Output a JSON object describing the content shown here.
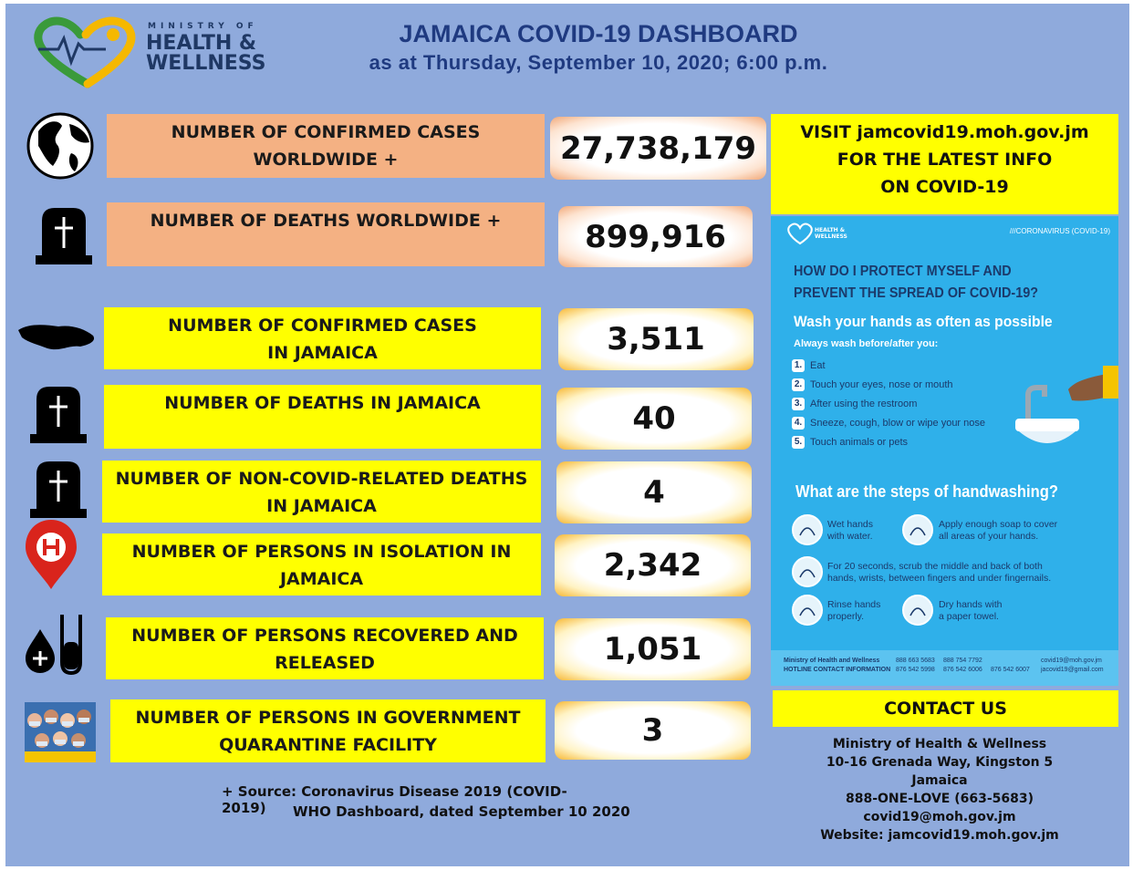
{
  "logo": {
    "top": "MINISTRY OF",
    "line1": "HEALTH &",
    "line2": "WELLNESS"
  },
  "header": {
    "title": "JAMAICA COVID-19 DASHBOARD",
    "subtitle": "as at Thursday, September 10, 2020; 6:00 p.m."
  },
  "stats": [
    {
      "label": [
        "NUMBER OF CONFIRMED CASES",
        "WORLDWIDE +"
      ],
      "value": "27,738,179"
    },
    {
      "label": [
        "NUMBER OF DEATHS WORLDWIDE +"
      ],
      "value": "899,916"
    },
    {
      "label": [
        "NUMBER OF CONFIRMED CASES",
        "IN JAMAICA"
      ],
      "value": "3,511"
    },
    {
      "label": [
        "NUMBER OF DEATHS IN JAMAICA"
      ],
      "value": "40"
    },
    {
      "label": [
        "NUMBER OF NON-COVID-RELATED  DEATHS",
        "IN JAMAICA"
      ],
      "value": "4"
    },
    {
      "label": [
        "NUMBER OF PERSONS IN ISOLATION IN",
        "JAMAICA"
      ],
      "value": "2,342"
    },
    {
      "label": [
        "NUMBER OF PERSONS RECOVERED AND",
        "RELEASED"
      ],
      "value": "1,051"
    },
    {
      "label": [
        "NUMBER OF PERSONS IN GOVERNMENT",
        "QUARANTINE FACILITY"
      ],
      "value": "3"
    }
  ],
  "footnote": [
    "+ Source: Coronavirus Disease 2019 (COVID-2019)",
    "WHO Dashboard, dated September 10 2020"
  ],
  "visit": [
    "VISIT  jamcovid19.moh.gov.jm",
    "FOR THE LATEST INFO",
    "ON COVID-19"
  ],
  "poster": {
    "logo": [
      "HEALTH &",
      "WELLNESS"
    ],
    "tag": "///CORONAVIRUS (COVID-19)",
    "question": [
      "HOW DO I PROTECT MYSELF AND",
      "PREVENT THE SPREAD OF COVID-19?"
    ],
    "wash": "Wash your hands as often as possible",
    "always": "Always wash before/after you:",
    "list": [
      {
        "num": "1.",
        "text": "Eat"
      },
      {
        "num": "2.",
        "text": "Touch your eyes, nose or mouth"
      },
      {
        "num": "3.",
        "text": "After using the restroom"
      },
      {
        "num": "4.",
        "text": "Sneeze, cough, blow or wipe your nose"
      },
      {
        "num": "5.",
        "text": "Touch animals or pets"
      }
    ],
    "steps_title": "What are the steps of handwashing?",
    "steps": [
      [
        "Wet hands",
        "with water."
      ],
      [
        "Apply enough soap to cover",
        "all areas of your hands."
      ],
      [
        "For 20 seconds, scrub the middle and back of both",
        "hands, wrists, between fingers and under fingernails."
      ],
      [
        "Rinse hands",
        "properly."
      ],
      [
        "Dry hands with",
        "a paper towel."
      ]
    ],
    "footer": {
      "org": [
        "Ministry of Health and Wellness",
        "HOTLINE CONTACT INFORMATION"
      ],
      "phones": [
        [
          "888 663 5683",
          "876 542 5998"
        ],
        [
          "888 754 7792",
          "876 542 6006"
        ],
        [
          "876 542 6007"
        ]
      ],
      "emails": [
        "covid19@moh.gov.jm",
        "jacovid19@gmail.com"
      ]
    }
  },
  "contact": {
    "heading": "CONTACT US",
    "lines": [
      "Ministry of Health & Wellness",
      "10-16 Grenada Way, Kingston 5",
      "Jamaica",
      "888-ONE-LOVE  (663-5683)",
      "covid19@moh.gov.jm",
      "Website: jamcovid19.moh.gov.jm"
    ]
  }
}
